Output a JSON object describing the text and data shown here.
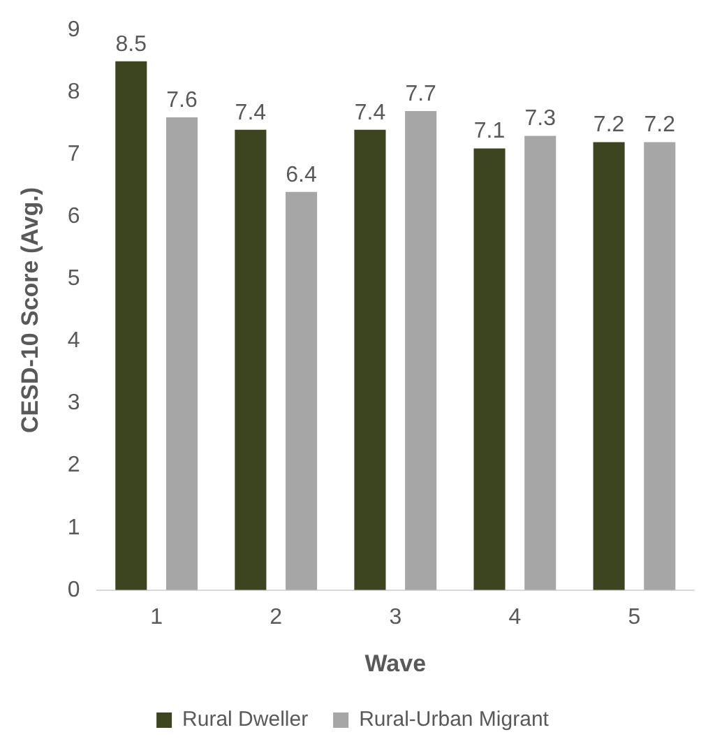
{
  "chart_data": {
    "type": "bar",
    "xlabel": "Wave",
    "ylabel": "CESD-10 Score (Avg.)",
    "categories": [
      "1",
      "2",
      "3",
      "4",
      "5"
    ],
    "series": [
      {
        "name": "Rural Dweller",
        "color": "#3d4520",
        "values": [
          8.5,
          7.4,
          7.4,
          7.1,
          7.2
        ]
      },
      {
        "name": "Rural-Urban Migrant",
        "color": "#a6a6a6",
        "values": [
          7.6,
          6.4,
          7.7,
          7.3,
          7.2
        ]
      }
    ],
    "ylim": [
      0,
      9
    ],
    "yticks": [
      0,
      1,
      2,
      3,
      4,
      5,
      6,
      7,
      8,
      9
    ],
    "grid": false,
    "legend": "bottom",
    "data_labels": true
  }
}
